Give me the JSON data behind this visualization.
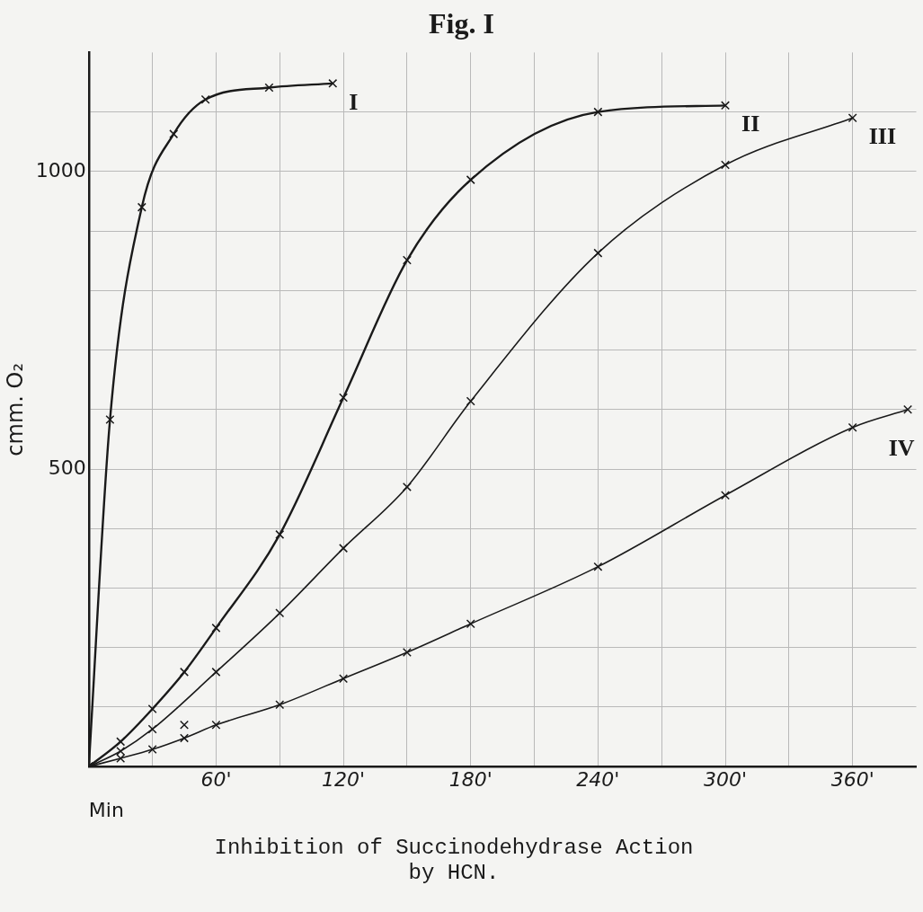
{
  "chart_data": {
    "type": "line",
    "title": "Fig. I",
    "xlabel": "Min",
    "ylabel": "cmm. O₂",
    "annotations": [
      "Inhibition of Succinodehydrase Action\nby HCN."
    ],
    "xlim": [
      0,
      390
    ],
    "ylim": [
      0,
      1200
    ],
    "xticks": [
      {
        "value": 30,
        "label": null
      },
      {
        "value": 60,
        "label": "60'"
      },
      {
        "value": 90,
        "label": null
      },
      {
        "value": 120,
        "label": "120'"
      },
      {
        "value": 150,
        "label": null
      },
      {
        "value": 180,
        "label": "180'"
      },
      {
        "value": 210,
        "label": null
      },
      {
        "value": 240,
        "label": "240'"
      },
      {
        "value": 270,
        "label": null
      },
      {
        "value": 300,
        "label": "300'"
      },
      {
        "value": 330,
        "label": null
      },
      {
        "value": 360,
        "label": "360'"
      }
    ],
    "yticks": [
      {
        "value": 100,
        "label": null
      },
      {
        "value": 200,
        "label": null
      },
      {
        "value": 300,
        "label": null
      },
      {
        "value": 400,
        "label": null
      },
      500,
      {
        "value": 600,
        "label": null
      },
      {
        "value": 700,
        "label": null
      },
      {
        "value": 800,
        "label": null
      },
      {
        "value": 900,
        "label": null
      },
      1000,
      {
        "value": 1100,
        "label": null
      }
    ],
    "grid": true,
    "marker": "cross",
    "line_style": "solid",
    "legend": false,
    "series": [
      {
        "name": "I",
        "color": "#1a1a1a",
        "x": [
          0,
          10,
          25,
          40,
          55,
          85,
          115
        ],
        "values": [
          0,
          583,
          940,
          1063,
          1121,
          1141,
          1148
        ]
      },
      {
        "name": "II",
        "color": "#1a1a1a",
        "x": [
          0,
          15,
          30,
          45,
          60,
          90,
          120,
          150,
          180,
          240,
          300
        ],
        "values": [
          0,
          42,
          97,
          159,
          233,
          390,
          620,
          851,
          986,
          1100,
          1111
        ]
      },
      {
        "name": "III",
        "color": "#1a1a1a",
        "x": [
          0,
          15,
          30,
          60,
          90,
          120,
          150,
          180,
          240,
          300,
          360
        ],
        "values": [
          0,
          26,
          63,
          159,
          258,
          367,
          470,
          614,
          863,
          1011,
          1090
        ]
      },
      {
        "name": "IV",
        "color": "#1a1a1a",
        "x": [
          0,
          15,
          30,
          45,
          60,
          90,
          120,
          150,
          180,
          240,
          300,
          360,
          386
        ],
        "values": [
          0,
          14,
          29,
          48,
          70,
          104,
          148,
          192,
          240,
          336,
          456,
          570,
          600
        ]
      },
      {
        "type": "scatter",
        "color": "#1a1a1a",
        "x": [
          45
        ],
        "values": [
          70
        ]
      }
    ]
  }
}
